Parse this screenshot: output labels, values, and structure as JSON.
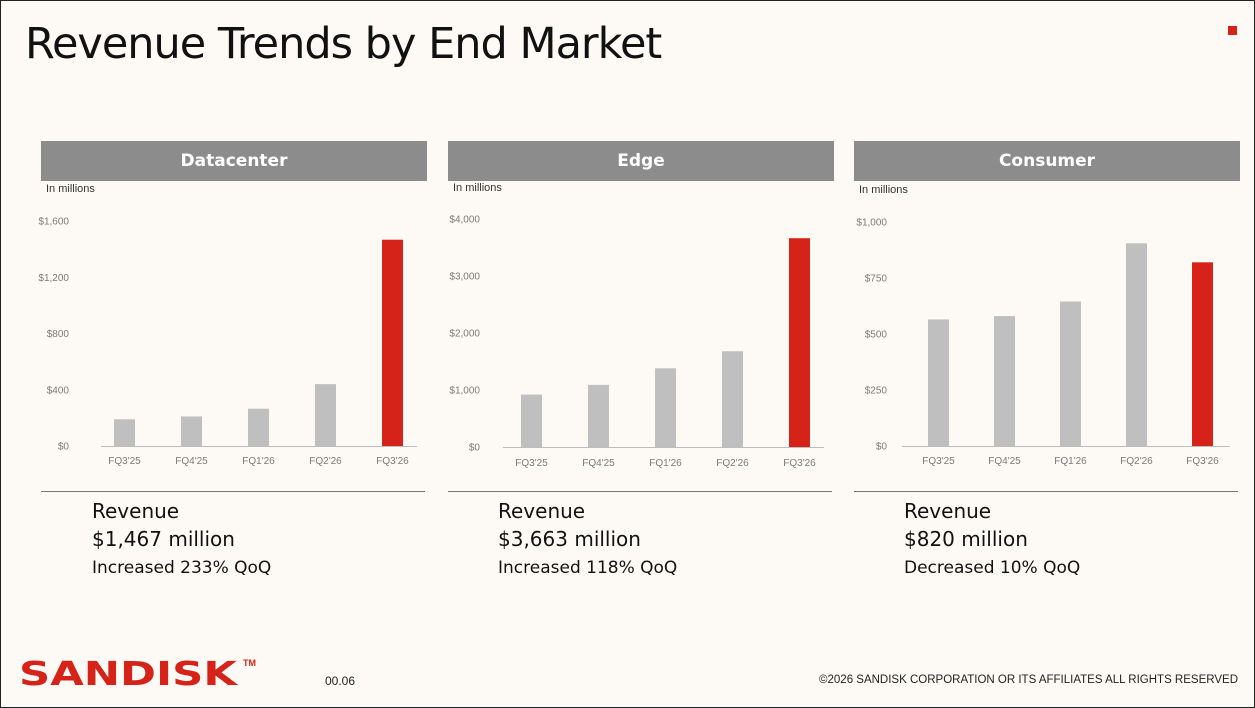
{
  "title": "Revenue Trends by End Market",
  "colors": {
    "highlight": "#d52319",
    "bar": "#bfbfbf",
    "header": "#8c8c8c"
  },
  "panels": [
    {
      "header": "Datacenter",
      "unit": "In millions",
      "revenue_label": "Revenue",
      "revenue_value": "$1,467 million",
      "change": "Increased 233% QoQ"
    },
    {
      "header": "Edge",
      "unit": "In millions",
      "revenue_label": "Revenue",
      "revenue_value": "$3,663 million",
      "change": "Increased 118% QoQ"
    },
    {
      "header": "Consumer",
      "unit": "In millions",
      "revenue_label": "Revenue",
      "revenue_value": "$820 million",
      "change": "Decreased 10% QoQ"
    }
  ],
  "chart_data": [
    {
      "type": "bar",
      "title": "Datacenter",
      "ylabel": "In millions",
      "categories": [
        "FQ3'25",
        "FQ4'25",
        "FQ1'26",
        "FQ2'26",
        "FQ3'26"
      ],
      "values": [
        190,
        210,
        265,
        440,
        1467
      ],
      "ylim": [
        0,
        1600
      ],
      "yticks": [
        0,
        400,
        800,
        1200,
        1600
      ],
      "ytick_labels": [
        "$0",
        "$400",
        "$800",
        "$1,200",
        "$1,600"
      ],
      "highlight_index": 4,
      "grid": false
    },
    {
      "type": "bar",
      "title": "Edge",
      "ylabel": "In millions",
      "categories": [
        "FQ3'25",
        "FQ4'25",
        "FQ1'26",
        "FQ2'26",
        "FQ3'26"
      ],
      "values": [
        920,
        1090,
        1380,
        1680,
        3663
      ],
      "ylim": [
        0,
        4000
      ],
      "yticks": [
        0,
        1000,
        2000,
        3000,
        4000
      ],
      "ytick_labels": [
        "$0",
        "$1,000",
        "$2,000",
        "$3,000",
        "$4,000"
      ],
      "highlight_index": 4,
      "grid": false
    },
    {
      "type": "bar",
      "title": "Consumer",
      "ylabel": "In millions",
      "categories": [
        "FQ3'25",
        "FQ4'25",
        "FQ1'26",
        "FQ2'26",
        "FQ3'26"
      ],
      "values": [
        565,
        580,
        645,
        905,
        820
      ],
      "ylim": [
        0,
        1000
      ],
      "yticks": [
        0,
        250,
        500,
        750,
        1000
      ],
      "ytick_labels": [
        "$0",
        "$250",
        "$500",
        "$750",
        "$1,000"
      ],
      "highlight_index": 4,
      "grid": false
    }
  ],
  "footer": {
    "logo_text": "SANDISK",
    "page_number": "00.06",
    "copyright": "©2026 SANDISK CORPORATION OR ITS AFFILIATES ALL RIGHTS RESERVED"
  }
}
